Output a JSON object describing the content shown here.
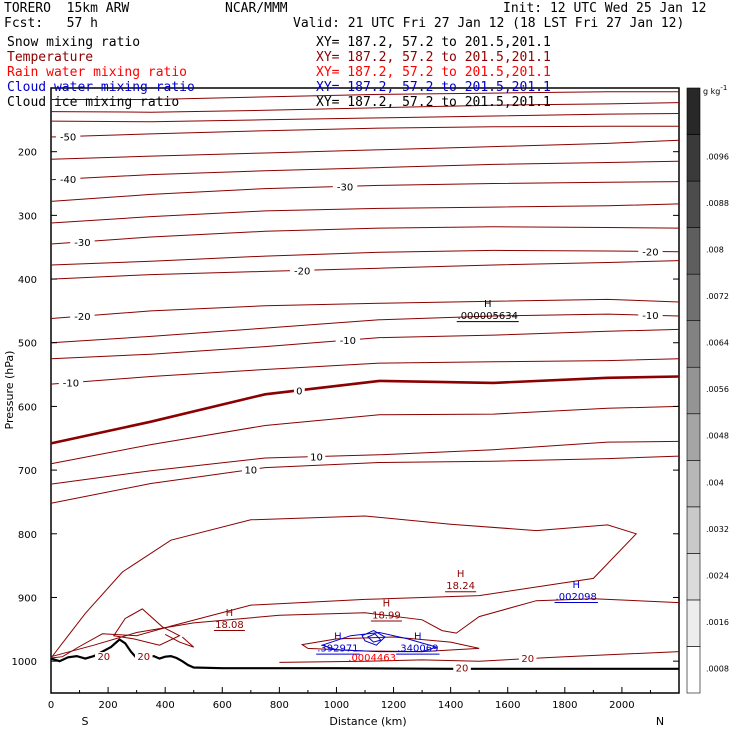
{
  "header": {
    "model": "TORERO  15km ARW",
    "center": "NCAR/MMM",
    "init": "Init: 12 UTC Wed 25 Jan 12",
    "fcst": "Fcst:   57 h",
    "valid": "Valid: 21 UTC Fri 27 Jan 12 (18 LST Fri 27 Jan 12)"
  },
  "fields": [
    {
      "name": "Snow mixing ratio",
      "xy": "XY= 187.2, 57.2 to 201.5,201.1",
      "color": "#000000"
    },
    {
      "name": "Temperature",
      "xy": "XY= 187.2, 57.2 to 201.5,201.1",
      "color": "#8b0000"
    },
    {
      "name": "Rain water mixing ratio",
      "xy": "XY= 187.2, 57.2 to 201.5,201.1",
      "color": "#ff0000"
    },
    {
      "name": "Cloud water mixing ratio",
      "xy": "XY= 187.2, 57.2 to 201.5,201.1",
      "color": "#0000cd"
    },
    {
      "name": "Cloud ice mixing ratio",
      "xy": "XY= 187.2, 57.2 to 201.5,201.1",
      "color": "#000000"
    }
  ],
  "chart_data": {
    "type": "contour",
    "xlabel": "Distance (km)",
    "ylabel": "Pressure (hPa)",
    "xlim": [
      0,
      2200
    ],
    "ylim": [
      1050,
      100
    ],
    "x_ticks": [
      0,
      200,
      400,
      600,
      800,
      1000,
      1200,
      1400,
      1600,
      1800,
      2000
    ],
    "y_ticks": [
      200,
      300,
      400,
      500,
      600,
      700,
      800,
      900,
      1000
    ],
    "x_end_labels": {
      "left": "S",
      "right": "N"
    },
    "colorbar": {
      "unit": "g kg",
      "unit_exp": "-1",
      "levels": [
        0.0008,
        0.0016,
        0.0024,
        0.0032,
        0.004,
        0.0048,
        0.0056,
        0.0064,
        0.0072,
        0.008,
        0.0088,
        0.0096
      ],
      "labels": [
        ".0008",
        ".0016",
        ".0024",
        ".0032",
        ".004",
        ".0048",
        ".0056",
        ".0064",
        ".0072",
        ".008",
        ".0088",
        ".0096"
      ]
    },
    "terrain": {
      "x": [
        0,
        30,
        60,
        90,
        120,
        150,
        180,
        210,
        240,
        260,
        280,
        300,
        320,
        340,
        360,
        380,
        400,
        420,
        440,
        460,
        480,
        500,
        600,
        1000,
        1400,
        1800,
        2200
      ],
      "p": [
        996,
        1000,
        994,
        992,
        996,
        992,
        985,
        978,
        966,
        972,
        985,
        995,
        997,
        994,
        992,
        996,
        993,
        992,
        995,
        1000,
        1006,
        1010,
        1011,
        1011,
        1012,
        1012,
        1012
      ]
    },
    "temperature_isotherms": [
      {
        "p": [
          118,
          118,
          114,
          110,
          108,
          106,
          106
        ],
        "label": "",
        "label_x": null
      },
      {
        "p": [
          137,
          138,
          135,
          131,
          127,
          125,
          123
        ],
        "label": "",
        "label_x": null
      },
      {
        "p": [
          152,
          153,
          150,
          147,
          144,
          141,
          140
        ],
        "label": "",
        "label_x": null
      },
      {
        "p": [
          177,
          172,
          167,
          163,
          161,
          160,
          160
        ],
        "label": "-50",
        "label_x": 60
      },
      {
        "p": [
          212,
          207,
          202,
          197,
          192,
          187,
          182
        ],
        "label": "",
        "label_x": null
      },
      {
        "p": [
          244,
          236,
          230,
          225,
          220,
          217,
          215
        ],
        "label": "-40",
        "label_x": 60
      },
      {
        "p": [
          278,
          267,
          258,
          253,
          250,
          248,
          247
        ],
        "label": "-30",
        "label_x": 1030
      },
      {
        "p": [
          312,
          302,
          293,
          289,
          287,
          285,
          282
        ],
        "label": "",
        "label_x": null
      },
      {
        "p": [
          345,
          334,
          325,
          320,
          318,
          319,
          320
        ],
        "label": "-30",
        "label_x": 110
      },
      {
        "p": [
          378,
          372,
          364,
          358,
          355,
          356,
          357
        ],
        "label": "-20",
        "label_x": 2100
      },
      {
        "p": [
          400,
          393,
          388,
          383,
          378,
          374,
          371
        ],
        "label": "-20",
        "label_x": 880
      },
      {
        "p": [
          462,
          450,
          442,
          438,
          435,
          432,
          436
        ],
        "label": "-20",
        "label_x": 110
      },
      {
        "p": [
          500,
          490,
          477,
          464,
          458,
          455,
          458
        ],
        "label": "-10",
        "label_x": 2100
      },
      {
        "p": [
          525,
          518,
          506,
          492,
          488,
          482,
          479
        ],
        "label": "-10",
        "label_x": 1040
      },
      {
        "p": [
          565,
          553,
          542,
          532,
          530,
          528,
          525
        ],
        "label": "-10",
        "label_x": 70
      },
      {
        "p": [
          658,
          624,
          581,
          560,
          563,
          555,
          553
        ],
        "label": "0",
        "label_x": 870,
        "bold": true
      },
      {
        "p": [
          690,
          660,
          630,
          613,
          612,
          603,
          600
        ],
        "label": "",
        "label_x": null
      },
      {
        "p": [
          722,
          701,
          681,
          676,
          668,
          656,
          655
        ],
        "label": "10",
        "label_x": 930
      },
      {
        "p": [
          752,
          721,
          696,
          688,
          686,
          682,
          678
        ],
        "label": "10",
        "label_x": 700
      }
    ],
    "isotherm_x": [
      0,
      350,
      750,
      1150,
      1550,
      1950,
      2200
    ],
    "warm_contours": [
      {
        "x": [
          0,
          120,
          250,
          420,
          700,
          1100,
          1400,
          1700,
          1950,
          2050,
          1900,
          1500,
          1100,
          700,
          420,
          300,
          180,
          100,
          40,
          0
        ],
        "p": [
          995,
          925,
          860,
          810,
          778,
          772,
          785,
          795,
          786,
          800,
          870,
          897,
          903,
          912,
          945,
          960,
          957,
          977,
          993,
          995
        ],
        "closed": false
      },
      {
        "x": [
          0,
          150,
          300,
          500,
          800,
          1100,
          1300,
          1370,
          1420,
          1500,
          1700,
          1900,
          2200
        ],
        "p": [
          993,
          975,
          955,
          940,
          928,
          924,
          935,
          952,
          956,
          930,
          905,
          902,
          908
        ],
        "closed": false
      },
      {
        "x": [
          220,
          260,
          320,
          390,
          450,
          380,
          290
        ],
        "p": [
          960,
          933,
          918,
          946,
          960,
          975,
          965
        ],
        "closed": true
      },
      {
        "x": [
          400,
          450,
          500,
          460
        ],
        "p": [
          958,
          970,
          978,
          962
        ],
        "closed": false
      },
      {
        "x": [
          800,
          1100,
          1300,
          1500,
          1800,
          2200
        ],
        "p": [
          1002,
          1000,
          998,
          1000,
          993,
          985
        ],
        "closed": false
      },
      {
        "x": [
          880,
          1000,
          1200,
          1400,
          1500,
          1300,
          1100,
          900
        ],
        "p": [
          974,
          965,
          962,
          970,
          980,
          985,
          984,
          980
        ],
        "closed": true
      }
    ],
    "warm_labels": [
      {
        "text": "20",
        "x": 185,
        "p": 992
      },
      {
        "text": "20",
        "x": 325,
        "p": 992
      },
      {
        "text": "20",
        "x": 1440,
        "p": 1010
      },
      {
        "text": "20",
        "x": 1670,
        "p": 995
      }
    ],
    "temperature_maxima": [
      {
        "text": "18.08",
        "x": 625,
        "p": 948
      },
      {
        "text": "18.99",
        "x": 1175,
        "p": 933
      },
      {
        "text": "18.24",
        "x": 1435,
        "p": 887
      }
    ],
    "cloud_water": {
      "maxima": [
        {
          "text": ".002098",
          "x": 1840,
          "p": 904
        },
        {
          "text": ".392971",
          "x": 1005,
          "p": 985
        },
        {
          "text": ".340069",
          "x": 1285,
          "p": 985
        }
      ],
      "contours": [
        {
          "x": [
            950,
            1050,
            1150,
            1250,
            1350,
            1300,
            1150,
            1000
          ],
          "p": [
            975,
            960,
            955,
            965,
            978,
            985,
            985,
            982
          ]
        },
        {
          "x": [
            1090,
            1130,
            1170,
            1140,
            1100
          ],
          "p": [
            960,
            952,
            962,
            975,
            968
          ]
        },
        {
          "x": [
            1110,
            1135,
            1155,
            1130
          ],
          "p": [
            962,
            957,
            967,
            970
          ]
        }
      ]
    },
    "cloud_ice": {
      "maxima": [
        {
          "text": ".000005634",
          "x": 1530,
          "p": 463
        }
      ]
    },
    "rain_water": {
      "maxima": [
        {
          "text": ".0004463",
          "x": 1125,
          "p": 1000
        }
      ]
    }
  }
}
